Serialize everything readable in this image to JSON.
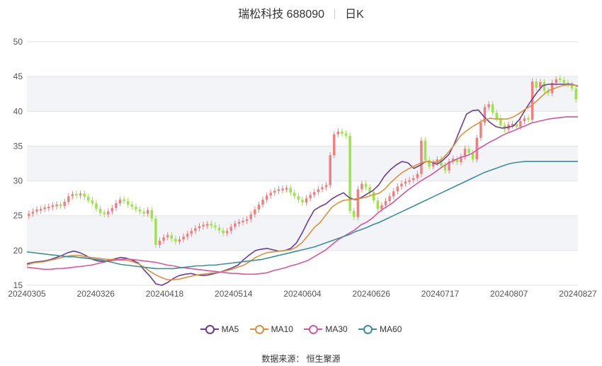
{
  "header": {
    "stock": "瑞松科技 688090",
    "period": "日K"
  },
  "source": "数据来源： 恒生聚源",
  "colors": {
    "up": "#f08080",
    "down": "#9be44a",
    "ma5": "#6a3d9a",
    "ma10": "#e0903a",
    "ma30": "#d8569a",
    "ma60": "#3a8f9a"
  },
  "chart_data": {
    "type": "candlestick",
    "ylim": [
      15,
      50
    ],
    "yticks": [
      15,
      20,
      25,
      30,
      35,
      40,
      45,
      50
    ],
    "x_labels": [
      "20240305",
      "20240326",
      "20240418",
      "20240514",
      "20240604",
      "20240626",
      "20240717",
      "20240807",
      "20240827"
    ],
    "grid": true,
    "legend": "bottom",
    "candles_close": [
      25.3,
      25.6,
      25.9,
      26.0,
      26.2,
      26.3,
      26.5,
      26.6,
      26.4,
      27.0,
      27.8,
      28.1,
      27.9,
      28.2,
      27.7,
      27.2,
      26.8,
      26.0,
      25.4,
      25.2,
      25.6,
      26.1,
      26.8,
      27.3,
      27.1,
      26.6,
      26.3,
      25.9,
      25.6,
      25.3,
      25.8,
      24.6,
      20.8,
      21.4,
      21.9,
      22.2,
      21.7,
      21.3,
      21.6,
      22.0,
      22.4,
      22.8,
      23.2,
      23.5,
      23.7,
      23.8,
      23.6,
      23.3,
      22.9,
      22.5,
      22.8,
      23.4,
      23.9,
      24.1,
      24.3,
      24.5,
      25.2,
      25.9,
      26.6,
      27.3,
      27.9,
      28.3,
      28.6,
      28.8,
      28.9,
      29.0,
      28.3,
      27.8,
      27.3,
      26.9,
      27.5,
      28.0,
      28.4,
      28.8,
      29.1,
      29.4,
      33.7,
      36.7,
      37.1,
      36.8,
      36.5,
      25.7,
      24.8,
      28.8,
      29.6,
      29.1,
      28.4,
      27.2,
      26.0,
      26.5,
      27.1,
      27.8,
      28.5,
      29.2,
      29.6,
      29.9,
      30.1,
      30.4,
      31.0,
      35.8,
      33.0,
      32.1,
      32.6,
      33.1,
      32.2,
      31.5,
      32.8,
      33.2,
      32.7,
      33.5,
      34.6,
      34.0,
      33.1,
      36.2,
      38.4,
      40.6,
      41.0,
      39.8,
      39.0,
      38.0,
      37.4,
      38.1,
      38.2,
      37.8,
      38.6,
      39.0,
      38.8,
      44.3,
      43.4,
      44.2,
      43.0,
      42.6,
      44.1,
      44.6,
      44.5,
      44.1,
      43.9,
      43.3,
      41.7
    ],
    "series": [
      {
        "name": "MA5",
        "values": [
          18.1,
          18.3,
          18.4,
          18.5,
          18.7,
          19.0,
          19.3,
          19.7,
          19.9,
          19.7,
          19.3,
          18.8,
          18.5,
          18.4,
          18.6,
          18.8,
          19.0,
          18.9,
          18.6,
          18.2,
          17.2,
          16.3,
          15.2,
          15.0,
          15.4,
          16.0,
          16.4,
          16.6,
          16.7,
          16.5,
          16.4,
          16.5,
          16.7,
          16.9,
          17.2,
          17.5,
          17.9,
          18.7,
          19.4,
          20.0,
          20.2,
          20.3,
          20.1,
          19.9,
          20.0,
          20.3,
          21.1,
          22.6,
          24.3,
          25.8,
          26.3,
          26.7,
          27.4,
          27.9,
          28.3,
          27.6,
          27.3,
          27.6,
          28.1,
          28.6,
          29.4,
          30.7,
          31.6,
          32.3,
          32.8,
          32.6,
          31.8,
          32.2,
          32.8,
          32.7,
          32.4,
          33.0,
          33.8,
          35.5,
          37.6,
          39.6,
          40.1,
          40.2,
          39.2,
          38.4,
          37.8,
          37.6,
          37.7,
          37.9,
          38.8,
          40.2,
          41.5,
          42.7,
          43.7,
          43.9,
          43.9,
          43.9,
          43.9,
          43.9,
          43.6
        ]
      },
      {
        "name": "MA10",
        "values": [
          17.9,
          18.2,
          18.3,
          18.4,
          18.6,
          18.8,
          19.0,
          19.2,
          19.3,
          19.3,
          19.1,
          19.0,
          18.9,
          18.8,
          18.7,
          18.7,
          18.6,
          18.6,
          18.4,
          18.1,
          17.6,
          17.0,
          16.5,
          16.1,
          15.8,
          15.8,
          15.9,
          16.1,
          16.3,
          16.5,
          16.6,
          16.7,
          16.8,
          16.9,
          17.1,
          17.3,
          17.6,
          17.9,
          18.4,
          19.0,
          19.4,
          19.7,
          19.8,
          19.9,
          20.0,
          20.1,
          20.5,
          21.2,
          22.2,
          23.3,
          24.0,
          25.1,
          26.2,
          26.8,
          27.2,
          27.3,
          27.4,
          27.5,
          27.7,
          28.0,
          28.2,
          28.8,
          29.7,
          30.5,
          31.2,
          31.7,
          32.1,
          32.5,
          32.8,
          32.7,
          32.7,
          33.3,
          34.2,
          35.3,
          36.5,
          37.2,
          37.8,
          38.3,
          38.8,
          39.0,
          38.9,
          38.9,
          38.9,
          39.2,
          39.7,
          40.3,
          40.8,
          41.5,
          42.3,
          43.0,
          43.3,
          43.6,
          43.8,
          43.8,
          43.7
        ]
      },
      {
        "name": "MA30",
        "values": [
          17.6,
          17.5,
          17.4,
          17.3,
          17.3,
          17.4,
          17.4,
          17.5,
          17.6,
          17.7,
          17.8,
          17.9,
          18.1,
          18.3,
          18.5,
          18.6,
          18.7,
          18.8,
          18.7,
          18.6,
          18.5,
          18.4,
          18.3,
          18.1,
          17.9,
          17.8,
          17.6,
          17.5,
          17.4,
          17.3,
          17.2,
          17.1,
          17.0,
          16.9,
          16.8,
          16.7,
          16.7,
          16.6,
          16.6,
          16.6,
          16.7,
          16.8,
          17.1,
          17.3,
          17.5,
          17.8,
          18.0,
          18.3,
          18.6,
          19.1,
          19.6,
          20.1,
          20.8,
          21.5,
          22.0,
          22.5,
          23.0,
          23.7,
          24.1,
          24.7,
          25.5,
          26.1,
          26.6,
          27.3,
          28.0,
          28.7,
          29.3,
          29.9,
          30.4,
          30.9,
          31.5,
          32.1,
          32.6,
          33.0,
          33.4,
          33.6,
          34.0,
          34.6,
          35.1,
          35.6,
          36.0,
          36.5,
          36.9,
          37.2,
          37.6,
          37.9,
          38.3,
          38.5,
          38.7,
          38.9,
          39.0,
          39.1,
          39.2,
          39.2,
          39.2
        ]
      },
      {
        "name": "MA60",
        "values": [
          19.8,
          19.7,
          19.6,
          19.5,
          19.4,
          19.3,
          19.2,
          19.1,
          19.1,
          19.0,
          18.9,
          18.8,
          18.7,
          18.6,
          18.4,
          18.2,
          18.0,
          17.9,
          17.8,
          17.7,
          17.6,
          17.5,
          17.4,
          17.4,
          17.4,
          17.4,
          17.5,
          17.6,
          17.7,
          17.8,
          17.8,
          17.9,
          17.9,
          18.0,
          18.1,
          18.2,
          18.3,
          18.4,
          18.5,
          18.6,
          18.7,
          18.9,
          19.1,
          19.3,
          19.5,
          19.7,
          19.9,
          20.1,
          20.3,
          20.5,
          20.8,
          21.1,
          21.4,
          21.7,
          22.0,
          22.3,
          22.7,
          23.0,
          23.3,
          23.7,
          24.0,
          24.4,
          24.8,
          25.2,
          25.6,
          26.0,
          26.4,
          26.8,
          27.2,
          27.6,
          28.0,
          28.4,
          28.8,
          29.2,
          29.6,
          30.0,
          30.4,
          30.8,
          31.2,
          31.5,
          31.8,
          32.1,
          32.4,
          32.6,
          32.7,
          32.8,
          32.8,
          32.8,
          32.8,
          32.8,
          32.8,
          32.8,
          32.8,
          32.8,
          32.8
        ]
      }
    ]
  }
}
